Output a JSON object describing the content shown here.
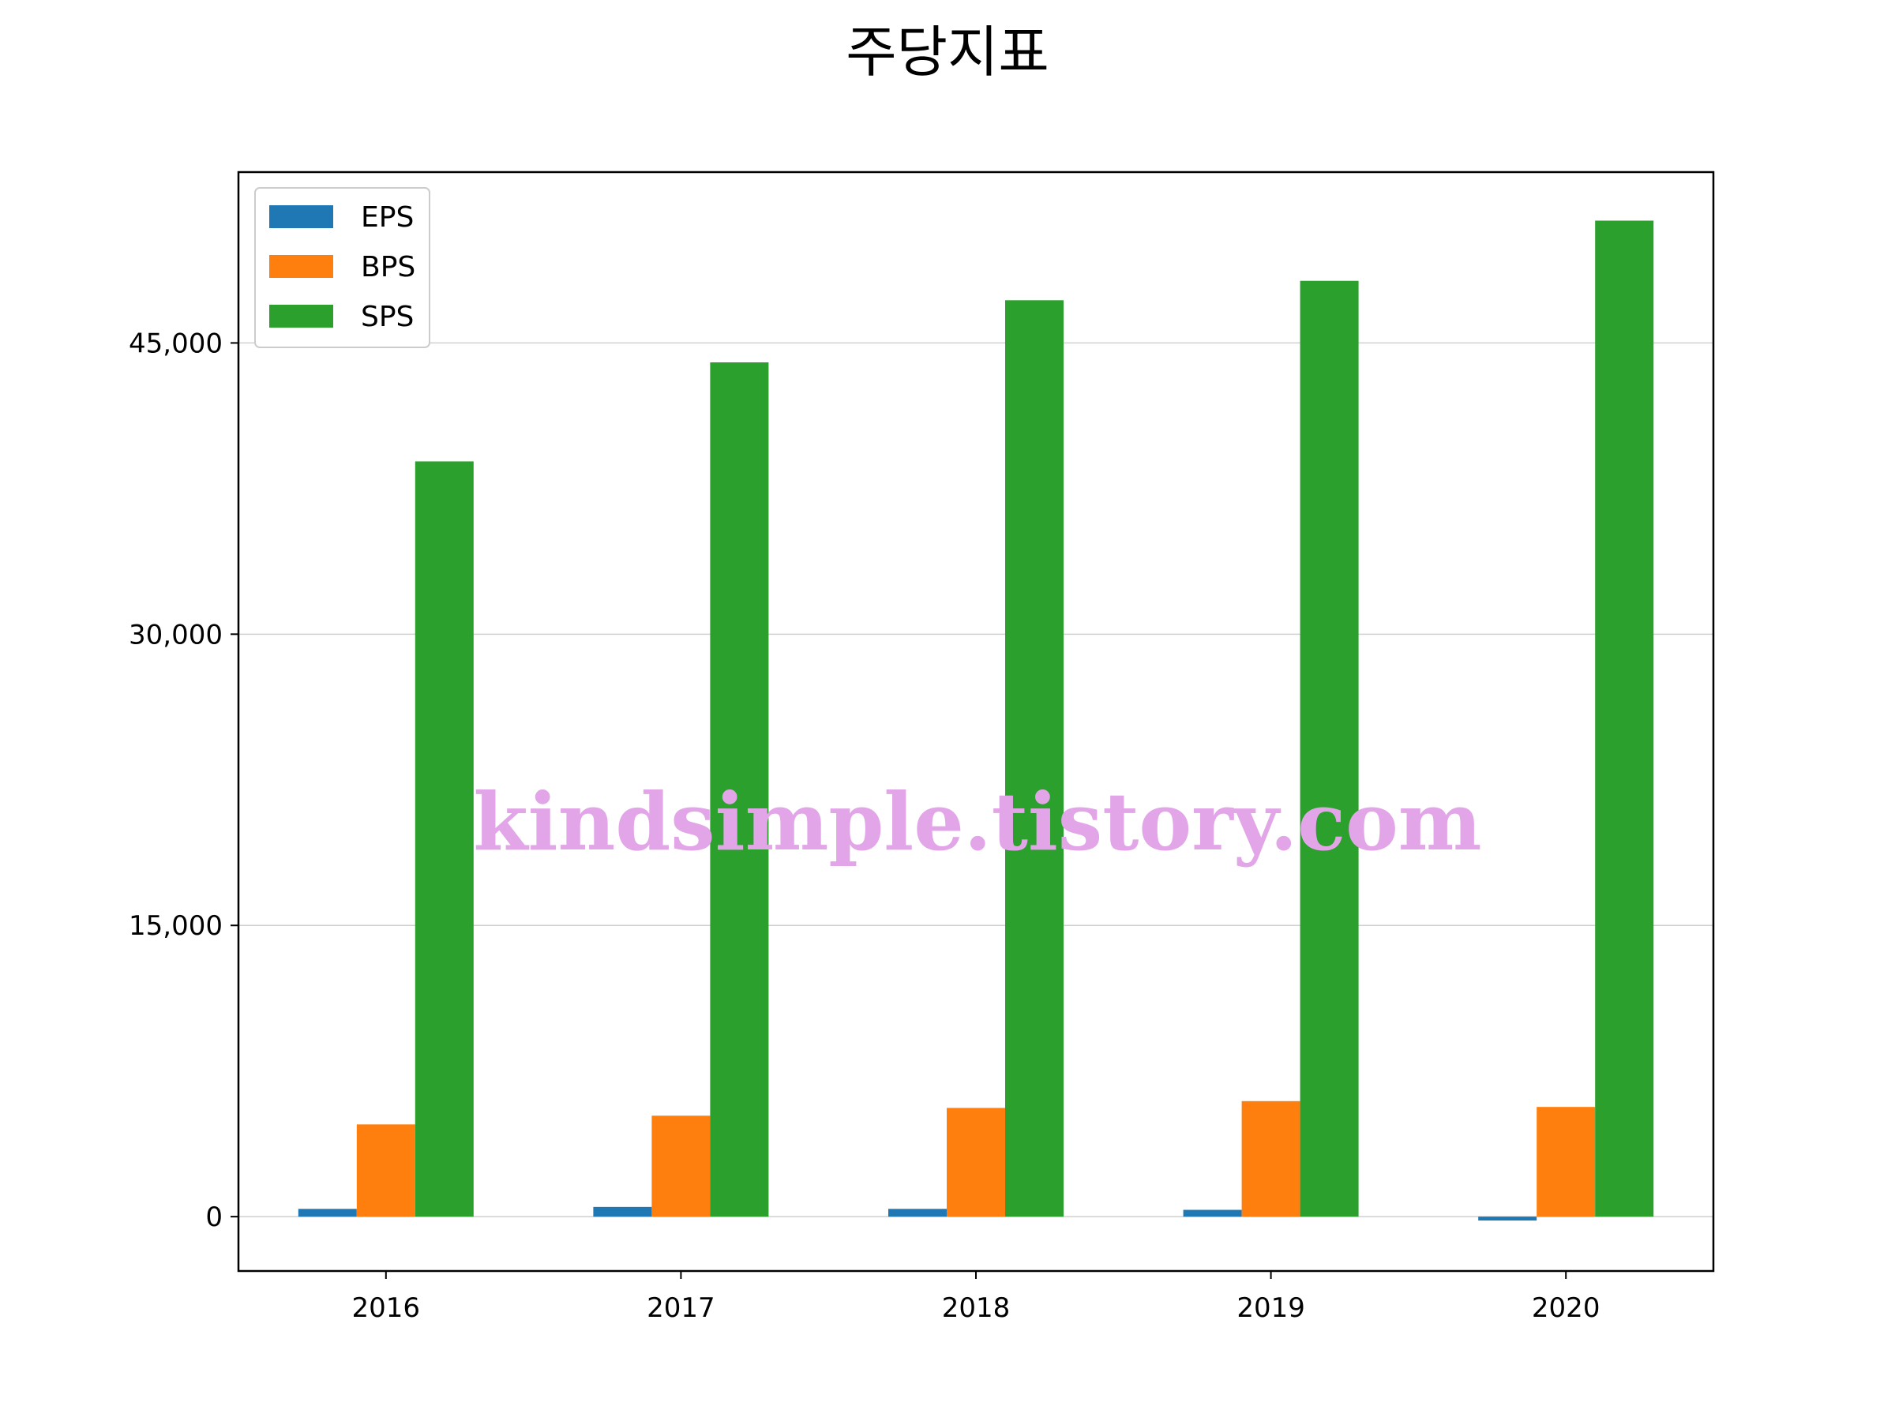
{
  "chart_data": {
    "type": "bar",
    "title": "주당지표",
    "categories": [
      "2016",
      "2017",
      "2018",
      "2019",
      "2020"
    ],
    "series": [
      {
        "name": "EPS",
        "values": [
          400,
          500,
          400,
          350,
          -200
        ]
      },
      {
        "name": "BPS",
        "values": [
          4750,
          5200,
          5600,
          5950,
          5650
        ]
      },
      {
        "name": "SPS",
        "values": [
          38900,
          44000,
          47200,
          48200,
          51300
        ]
      }
    ],
    "ylim": [
      -2800,
      53800
    ],
    "yticks": [
      0,
      15000,
      30000,
      45000
    ],
    "ytick_labels": [
      "0",
      "15,000",
      "30,000",
      "45,000"
    ],
    "xlabel": "",
    "ylabel": "",
    "grid": "y",
    "legend_position": "top-left",
    "colors": {
      "EPS": "#1f77b4",
      "BPS": "#ff7f0e",
      "SPS": "#2ca02c"
    }
  },
  "watermark": "kindsimple.tistory.com"
}
